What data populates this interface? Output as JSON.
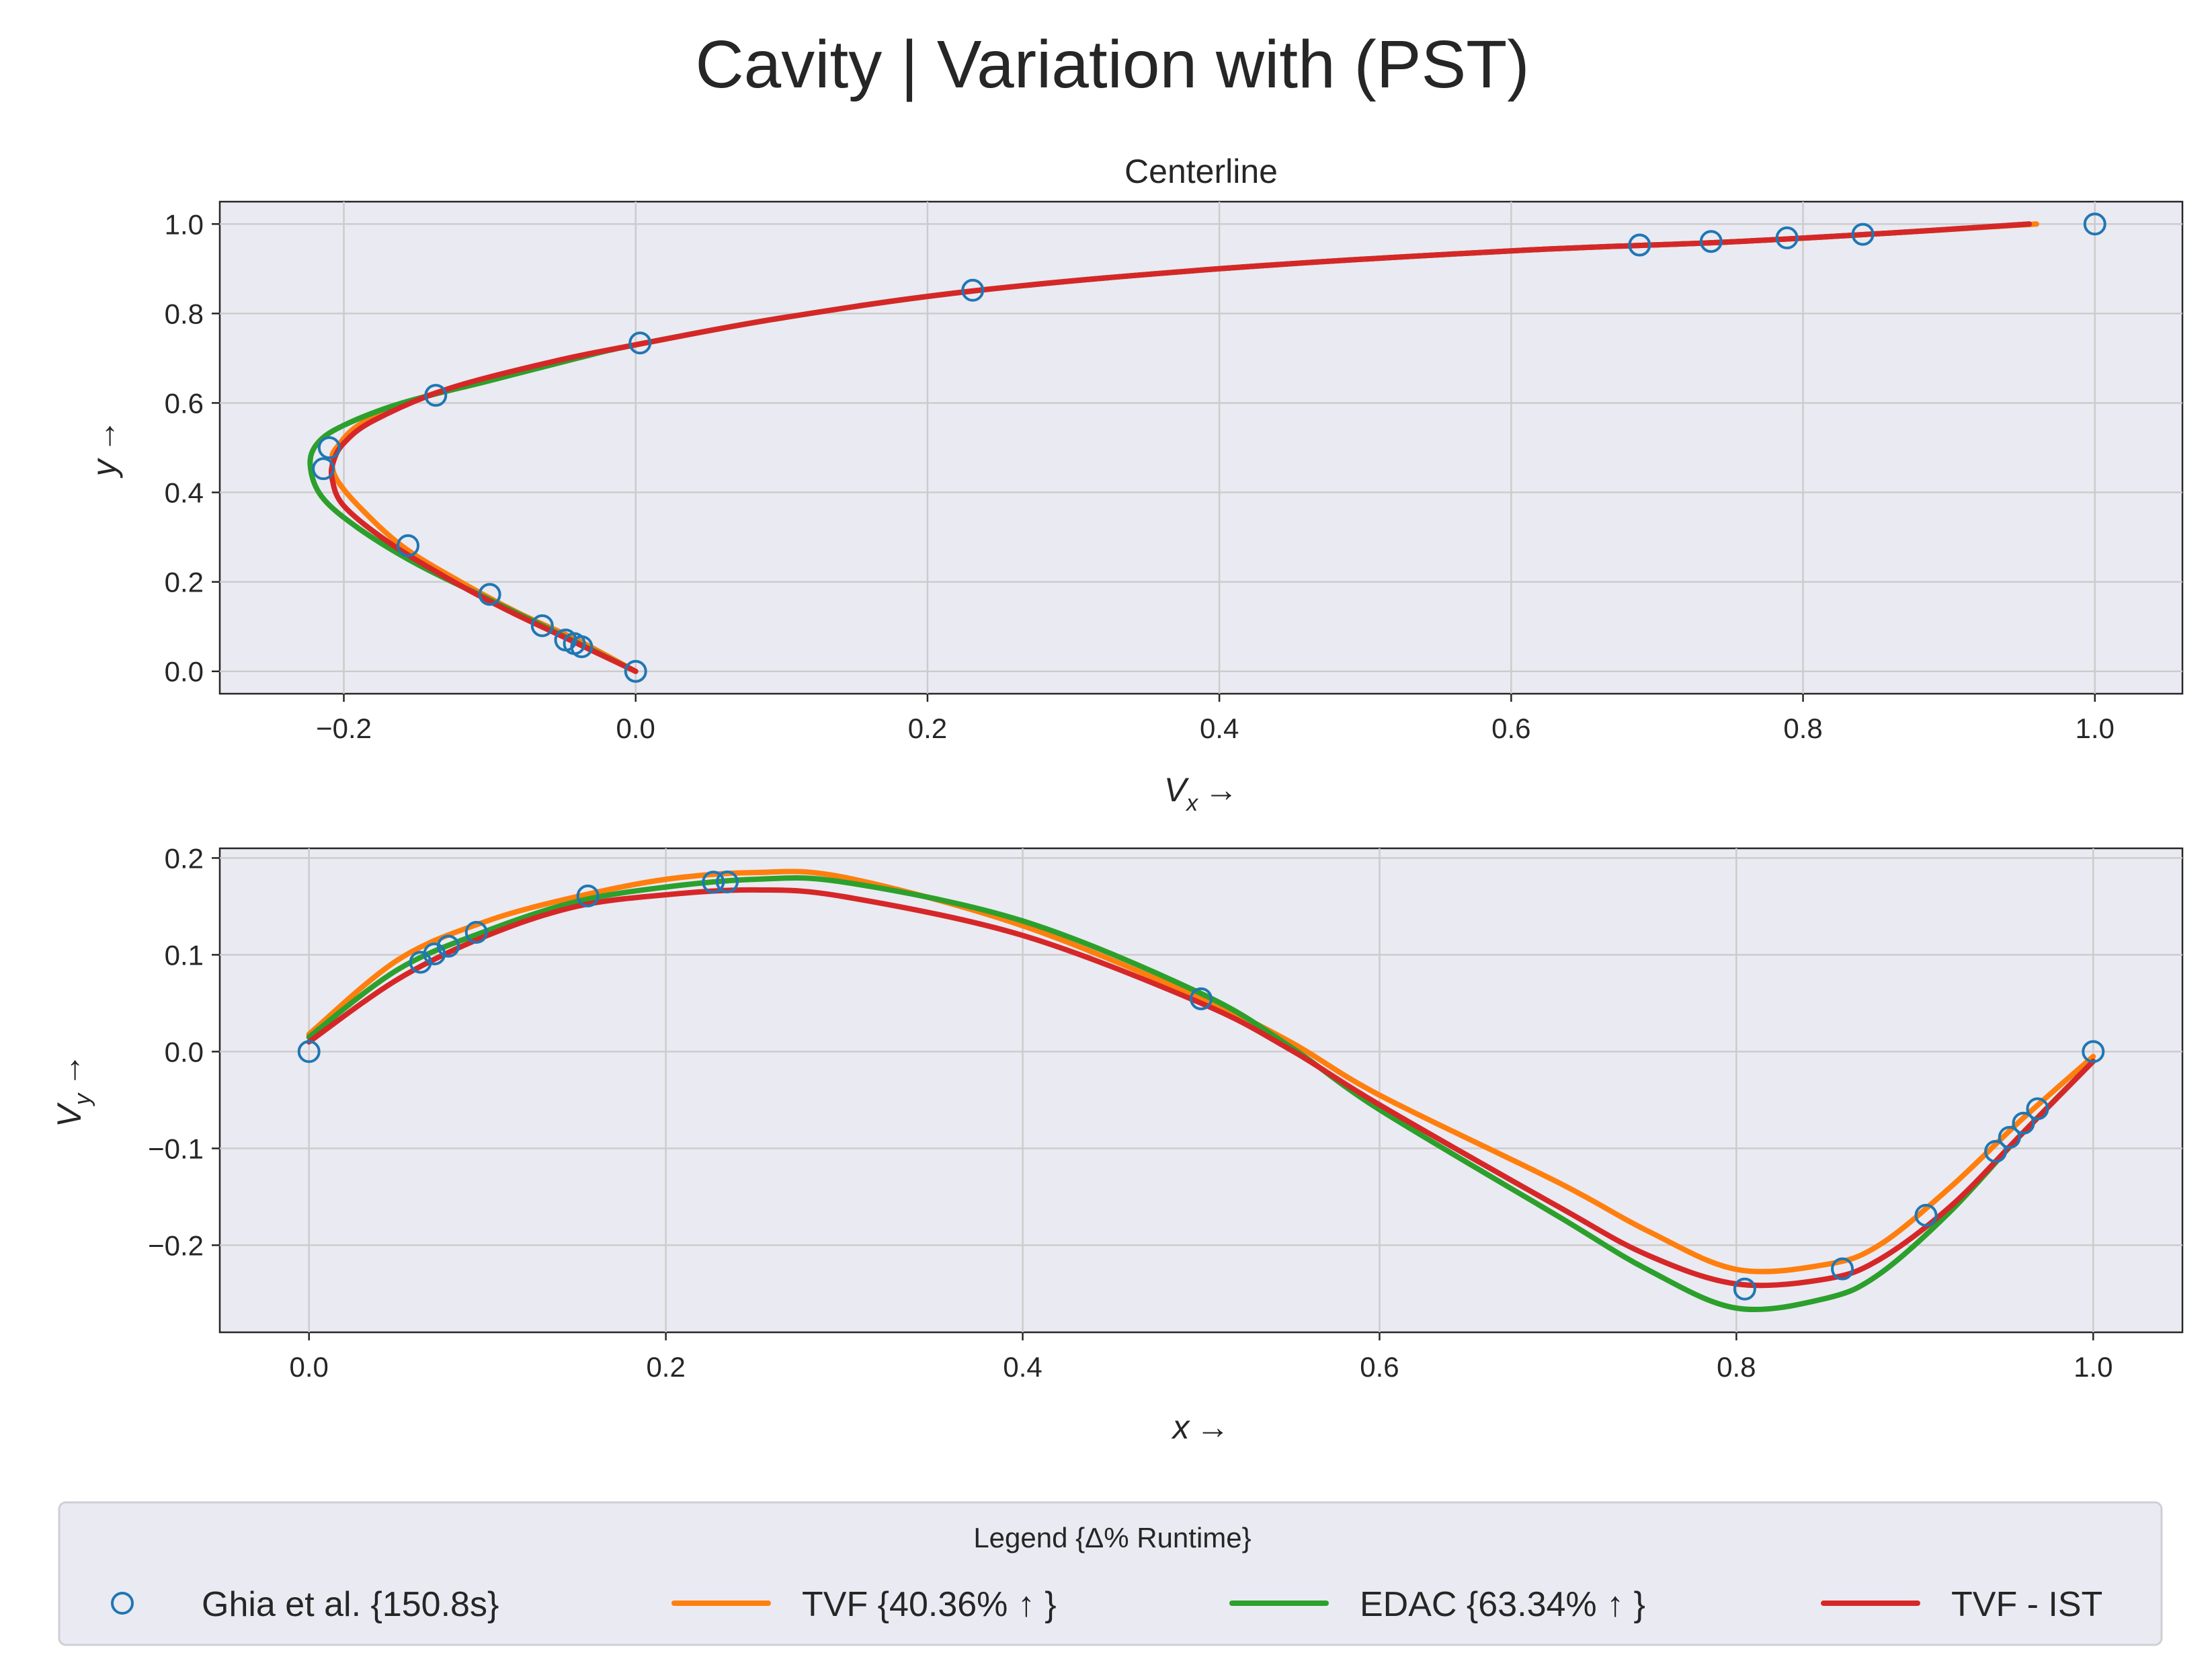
{
  "figure": {
    "title": "Cavity | Variation with (PST)"
  },
  "legend": {
    "title": "Legend {Δ% Runtime}",
    "placement": "bottom-center"
  },
  "chart_data": [
    {
      "type": "line",
      "title": "Centerline",
      "xlabel": "V",
      "xlabel_sub": "x",
      "ylabel": "y",
      "arrow": "→",
      "xlim": [
        -0.285,
        1.06
      ],
      "ylim": [
        -0.05,
        1.05
      ],
      "xticks": [
        -0.2,
        0.0,
        0.2,
        0.4,
        0.6,
        0.8,
        1.0
      ],
      "yticks": [
        0.0,
        0.2,
        0.4,
        0.6,
        0.8,
        1.0
      ],
      "grid": true,
      "series": [
        {
          "name": "Ghia et al. {150.8s}",
          "color": "#1f77b4",
          "marker": "open-circle",
          "x": [
            0.0,
            -0.037,
            -0.042,
            -0.048,
            -0.064,
            -0.1,
            -0.156,
            -0.21,
            -0.214,
            -0.137,
            0.003,
            0.231,
            0.688,
            0.737,
            0.789,
            0.841,
            1.0
          ],
          "y": [
            0.0,
            0.055,
            0.062,
            0.07,
            0.102,
            0.172,
            0.281,
            0.5,
            0.453,
            0.617,
            0.734,
            0.852,
            0.953,
            0.961,
            0.969,
            0.977,
            1.0
          ]
        },
        {
          "name": "TVF {40.36% ↑ }",
          "color": "#ff7f0e",
          "x": [
            0.0,
            -0.04,
            -0.08,
            -0.12,
            -0.16,
            -0.19,
            -0.205,
            -0.208,
            -0.205,
            -0.185,
            -0.13,
            -0.06,
            0.0,
            0.1,
            0.23,
            0.4,
            0.6,
            0.75,
            0.86,
            0.96
          ],
          "y": [
            0.0,
            0.07,
            0.13,
            0.2,
            0.28,
            0.37,
            0.43,
            0.47,
            0.5,
            0.56,
            0.63,
            0.69,
            0.73,
            0.79,
            0.85,
            0.9,
            0.94,
            0.96,
            0.98,
            1.0
          ]
        },
        {
          "name": "EDAC {63.34% ↑ }",
          "color": "#2ca02c",
          "x": [
            0.0,
            -0.05,
            -0.1,
            -0.15,
            -0.19,
            -0.215,
            -0.223,
            -0.218,
            -0.2,
            -0.16,
            -0.1,
            -0.04,
            0.0,
            0.1,
            0.23,
            0.4,
            0.6,
            0.75,
            0.86,
            0.955
          ],
          "y": [
            0.0,
            0.08,
            0.16,
            0.24,
            0.32,
            0.39,
            0.46,
            0.51,
            0.55,
            0.6,
            0.65,
            0.7,
            0.73,
            0.79,
            0.85,
            0.9,
            0.94,
            0.96,
            0.98,
            1.0
          ]
        },
        {
          "name": "TVF - IST",
          "color": "#d62728",
          "x": [
            0.0,
            -0.045,
            -0.09,
            -0.13,
            -0.17,
            -0.2,
            -0.208,
            -0.207,
            -0.2,
            -0.18,
            -0.13,
            -0.06,
            0.0,
            0.1,
            0.23,
            0.4,
            0.6,
            0.75,
            0.86,
            0.955
          ],
          "y": [
            0.0,
            0.07,
            0.14,
            0.21,
            0.29,
            0.37,
            0.43,
            0.47,
            0.51,
            0.56,
            0.63,
            0.69,
            0.73,
            0.79,
            0.85,
            0.9,
            0.94,
            0.96,
            0.98,
            1.0
          ]
        }
      ]
    },
    {
      "type": "line",
      "title": "",
      "xlabel": "x",
      "ylabel": "V",
      "ylabel_sub": "y",
      "arrow": "→",
      "xlim": [
        -0.05,
        1.05
      ],
      "ylim": [
        -0.29,
        0.21
      ],
      "xticks": [
        0.0,
        0.2,
        0.4,
        0.6,
        0.8,
        1.0
      ],
      "yticks": [
        -0.2,
        -0.1,
        0.0,
        0.1,
        0.2
      ],
      "grid": true,
      "series": [
        {
          "name": "Ghia et al. {150.8s}",
          "color": "#1f77b4",
          "marker": "open-circle",
          "x": [
            0.0,
            0.0625,
            0.0703,
            0.0781,
            0.0938,
            0.1563,
            0.2266,
            0.2344,
            0.5,
            0.8047,
            0.8594,
            0.9063,
            0.9453,
            0.9531,
            0.9609,
            0.9688,
            1.0
          ],
          "y": [
            0.0,
            0.0923,
            0.1009,
            0.1089,
            0.1232,
            0.1608,
            0.1751,
            0.1753,
            0.0545,
            -0.2453,
            -0.2245,
            -0.1691,
            -0.1031,
            -0.0886,
            -0.0739,
            -0.0591,
            0.0
          ]
        },
        {
          "name": "TVF {40.36% ↑ }",
          "color": "#ff7f0e",
          "x": [
            0.0,
            0.05,
            0.1,
            0.15,
            0.2,
            0.25,
            0.3,
            0.4,
            0.5,
            0.55,
            0.6,
            0.7,
            0.75,
            0.8,
            0.85,
            0.88,
            0.92,
            0.96,
            1.0
          ],
          "y": [
            0.018,
            0.095,
            0.135,
            0.16,
            0.178,
            0.185,
            0.18,
            0.13,
            0.055,
            0.01,
            -0.045,
            -0.135,
            -0.185,
            -0.225,
            -0.22,
            -0.2,
            -0.14,
            -0.07,
            -0.005
          ]
        },
        {
          "name": "EDAC {63.34% ↑ }",
          "color": "#2ca02c",
          "x": [
            0.0,
            0.05,
            0.1,
            0.15,
            0.2,
            0.25,
            0.3,
            0.4,
            0.5,
            0.55,
            0.6,
            0.7,
            0.75,
            0.8,
            0.85,
            0.88,
            0.92,
            0.96,
            1.0
          ],
          "y": [
            0.015,
            0.085,
            0.125,
            0.155,
            0.17,
            0.178,
            0.175,
            0.135,
            0.06,
            0.005,
            -0.06,
            -0.17,
            -0.225,
            -0.265,
            -0.255,
            -0.23,
            -0.165,
            -0.085,
            -0.01
          ]
        },
        {
          "name": "TVF - IST",
          "color": "#d62728",
          "x": [
            0.0,
            0.05,
            0.1,
            0.15,
            0.2,
            0.25,
            0.3,
            0.4,
            0.5,
            0.55,
            0.6,
            0.7,
            0.75,
            0.8,
            0.85,
            0.88,
            0.92,
            0.96,
            1.0
          ],
          "y": [
            0.01,
            0.075,
            0.12,
            0.15,
            0.162,
            0.167,
            0.16,
            0.12,
            0.05,
            0.002,
            -0.055,
            -0.16,
            -0.21,
            -0.24,
            -0.235,
            -0.215,
            -0.16,
            -0.085,
            -0.01
          ]
        }
      ]
    }
  ]
}
